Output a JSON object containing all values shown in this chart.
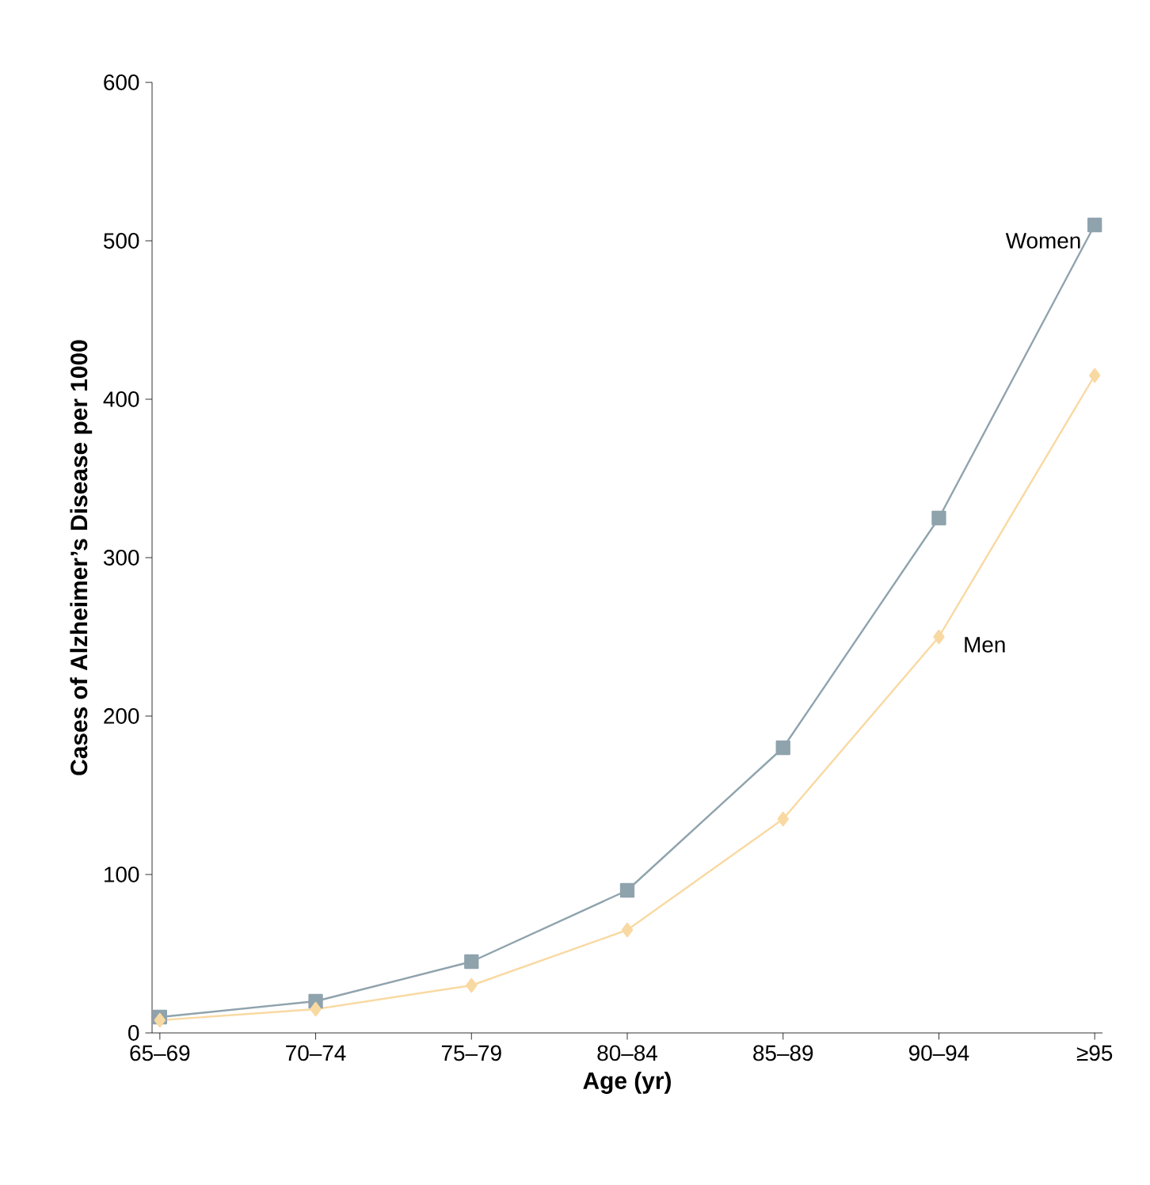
{
  "chart_data": {
    "type": "line",
    "xlabel": "Age (yr)",
    "ylabel": "Cases of Alzheimer’s Disease per 1000",
    "categories": [
      "65–69",
      "70–74",
      "75–79",
      "80–84",
      "85–89",
      "90–94",
      "≥95"
    ],
    "series": [
      {
        "name": "Women",
        "color": "#8fa3ad",
        "marker": "square",
        "values": [
          10,
          20,
          45,
          90,
          180,
          325,
          510
        ]
      },
      {
        "name": "Men",
        "color": "#f9d9a2",
        "marker": "diamond",
        "values": [
          8,
          15,
          30,
          65,
          135,
          250,
          415
        ]
      }
    ],
    "ylim": [
      0,
      600
    ],
    "yticks": [
      0,
      100,
      200,
      300,
      400,
      500,
      600
    ],
    "grid": false,
    "line_style": "solid"
  }
}
